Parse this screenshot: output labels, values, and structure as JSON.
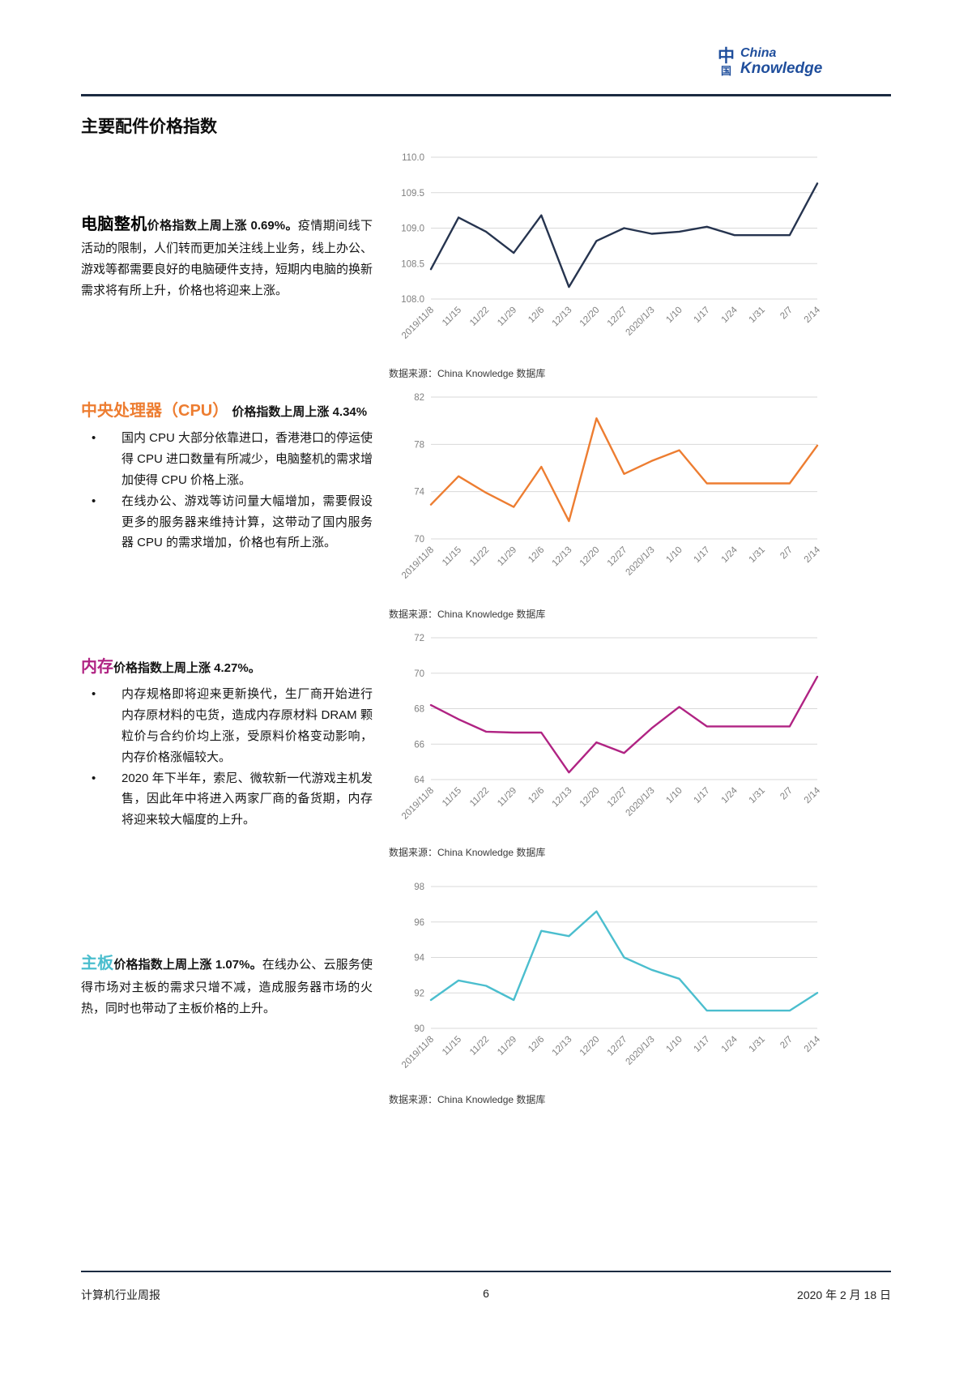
{
  "logo": {
    "cn_top": "中",
    "cn_bottom": "国",
    "en_top": "China",
    "en_bottom": "Knowledge"
  },
  "page": {
    "title": "主要配件价格指数",
    "footer": {
      "left": "计算机行业周报",
      "page_number": "6",
      "right": "2020 年 2 月 18 日"
    }
  },
  "source_caption": "数据来源：China Knowledge 数据库",
  "sections": [
    {
      "heading": "电脑整机",
      "heading_color": "#000000",
      "lead": "价格指数上周上涨 0.69%。",
      "body": "疫情期间线下活动的限制，人们转而更加关注线上业务，线上办公、游戏等都需要良好的电脑硬件支持，短期内电脑的换新需求将有所上升，价格也将迎来上涨。"
    },
    {
      "heading": "中央处理器（CPU）",
      "heading_color": "#ED7D31",
      "lead": " 价格指数上周上涨 4.34%",
      "bullets": [
        "国内 CPU 大部分依靠进口，香港港口的停运使得 CPU 进口数量有所减少，电脑整机的需求增加使得 CPU 价格上涨。",
        "在线办公、游戏等访问量大幅增加，需要假设更多的服务器来维持计算，这带动了国内服务器 CPU 的需求增加，价格也有所上涨。"
      ]
    },
    {
      "heading": "内存",
      "heading_color": "#B02383",
      "lead": "价格指数上周上涨 4.27%。",
      "bullets": [
        "内存规格即将迎来更新换代，生厂商开始进行内存原材料的屯货，造成内存原材料 DRAM 颗粒价与合约价均上涨，受原料价格变动影响，内存价格涨幅较大。",
        "2020 年下半年，索尼、微软新一代游戏主机发售，因此年中将进入两家厂商的备货期，内存将迎来较大幅度的上升。"
      ]
    },
    {
      "heading": "主板",
      "heading_color": "#4BBECE",
      "lead": "价格指数上周上涨 1.07%。",
      "body": "在线办公、云服务使得市场对主板的需求只增不减，造成服务器市场的火热，同时也带动了主板价格的上升。"
    }
  ],
  "chart_data": [
    {
      "type": "line",
      "name": "电脑整机价格指数",
      "color": "#26344F",
      "categories": [
        "2019/11/8",
        "11/15",
        "11/22",
        "11/29",
        "12/6",
        "12/13",
        "12/20",
        "12/27",
        "2020/1/3",
        "1/10",
        "1/17",
        "1/24",
        "1/31",
        "2/7",
        "2/14"
      ],
      "values": [
        108.42,
        109.15,
        108.95,
        108.65,
        109.18,
        108.17,
        108.82,
        109.0,
        108.92,
        108.95,
        109.02,
        108.9,
        108.9,
        108.9,
        109.63
      ],
      "ylim": [
        108.0,
        110.0
      ],
      "yticks": [
        108.0,
        108.5,
        109.0,
        109.5,
        110.0
      ],
      "y_decimals": 1,
      "xlabel": "",
      "ylabel": "",
      "grid": true,
      "legend": "none"
    },
    {
      "type": "line",
      "name": "中央处理器（CPU）价格指数",
      "color": "#ED7D31",
      "categories": [
        "2019/11/8",
        "11/15",
        "11/22",
        "11/29",
        "12/6",
        "12/13",
        "12/20",
        "12/27",
        "2020/1/3",
        "1/10",
        "1/17",
        "1/24",
        "1/31",
        "2/7",
        "2/14"
      ],
      "values": [
        72.9,
        75.3,
        73.9,
        72.7,
        76.1,
        71.5,
        80.2,
        75.5,
        76.6,
        77.5,
        74.7,
        74.7,
        74.7,
        74.7,
        77.9
      ],
      "ylim": [
        70,
        82
      ],
      "yticks": [
        70,
        74,
        78,
        82
      ],
      "y_decimals": 0,
      "xlabel": "",
      "ylabel": "",
      "grid": true,
      "legend": "none"
    },
    {
      "type": "line",
      "name": "内存价格指数",
      "color": "#B02383",
      "categories": [
        "2019/11/8",
        "11/15",
        "11/22",
        "11/29",
        "12/6",
        "12/13",
        "12/20",
        "12/27",
        "2020/1/3",
        "1/10",
        "1/17",
        "1/24",
        "1/31",
        "2/7",
        "2/14"
      ],
      "values": [
        68.2,
        67.4,
        66.7,
        66.65,
        66.65,
        64.4,
        66.1,
        65.5,
        66.9,
        68.1,
        67.0,
        67.0,
        67.0,
        67.0,
        69.8
      ],
      "ylim": [
        64,
        72
      ],
      "yticks": [
        64,
        66,
        68,
        70,
        72
      ],
      "y_decimals": 0,
      "xlabel": "",
      "ylabel": "",
      "grid": true,
      "legend": "none"
    },
    {
      "type": "line",
      "name": "主板价格指数",
      "color": "#4BBECE",
      "categories": [
        "2019/11/8",
        "11/15",
        "11/22",
        "11/29",
        "12/6",
        "12/13",
        "12/20",
        "12/27",
        "2020/1/3",
        "1/10",
        "1/17",
        "1/24",
        "1/31",
        "2/7",
        "2/14"
      ],
      "values": [
        91.6,
        92.7,
        92.4,
        91.6,
        95.5,
        95.2,
        96.6,
        94.0,
        93.3,
        92.8,
        91.0,
        91.0,
        91.0,
        91.0,
        92.0
      ],
      "ylim": [
        90,
        98
      ],
      "yticks": [
        90,
        92,
        94,
        96,
        98
      ],
      "y_decimals": 0,
      "xlabel": "",
      "ylabel": "",
      "grid": true,
      "legend": "none"
    }
  ]
}
